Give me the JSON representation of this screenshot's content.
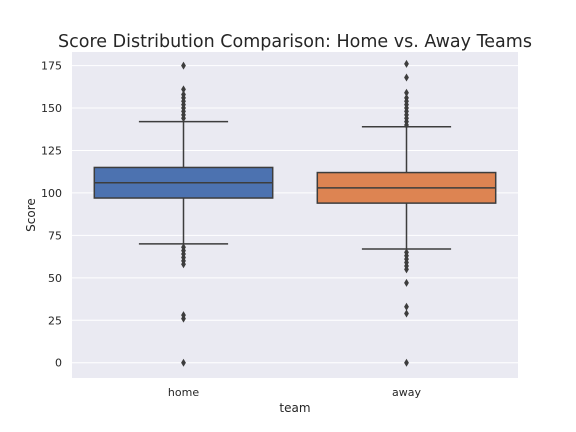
{
  "chart_data": {
    "type": "boxplot",
    "title": "Score Distribution Comparison: Home vs. Away Teams",
    "xlabel": "team",
    "ylabel": "Score",
    "ylim": [
      -9,
      183
    ],
    "yticks": [
      0,
      25,
      50,
      75,
      100,
      125,
      150,
      175
    ],
    "grid": true,
    "categories": [
      "home",
      "away"
    ],
    "series": [
      {
        "category": "home",
        "color": "#4c72b0",
        "whisker_low": 70,
        "q1": 97,
        "median": 106,
        "q3": 115,
        "whisker_high": 142,
        "outliers": [
          175,
          161,
          158,
          156,
          154,
          152,
          150,
          148,
          146,
          144,
          68,
          66,
          64,
          62,
          60,
          58,
          28,
          26,
          0
        ]
      },
      {
        "category": "away",
        "color": "#dd8452",
        "whisker_low": 67,
        "q1": 94,
        "median": 103,
        "q3": 112,
        "whisker_high": 139,
        "outliers": [
          176,
          168,
          159,
          156,
          154,
          152,
          150,
          148,
          146,
          144,
          142,
          140,
          65,
          63,
          61,
          59,
          57,
          55,
          47,
          33,
          29,
          0
        ]
      }
    ]
  }
}
